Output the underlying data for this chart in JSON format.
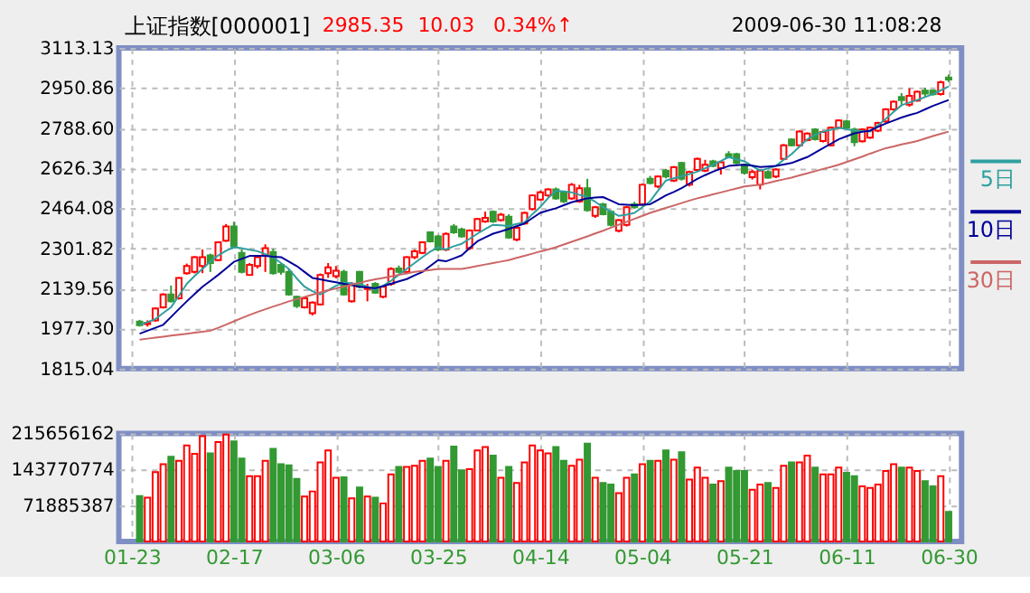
{
  "chart_data": [
    {
      "type": "candlestick",
      "title": "上证指数[000001]",
      "annotations": [
        "2985.35",
        "10.03",
        "0.34%↑",
        "2009-06-30 11:08:28"
      ],
      "categories": [
        null,
        null,
        null,
        null,
        null,
        null,
        null,
        null,
        null,
        null,
        null,
        null,
        null,
        null,
        null,
        null,
        null,
        null,
        null,
        null,
        null,
        null,
        null,
        null,
        null,
        null,
        null,
        null,
        null,
        null,
        null,
        null,
        null,
        null,
        null,
        null,
        null,
        null,
        null,
        null,
        null,
        null,
        null,
        null,
        null,
        null,
        null,
        null,
        null,
        null,
        null,
        null,
        null,
        null,
        null,
        null,
        null,
        null,
        null,
        null,
        null,
        null,
        null,
        null,
        null,
        null,
        null,
        null,
        null,
        null,
        null,
        null,
        null,
        null,
        null,
        null,
        null,
        null,
        null,
        null,
        null,
        null,
        null,
        null,
        null,
        null,
        null,
        null,
        null,
        null,
        null,
        null,
        null,
        null,
        null,
        null,
        null,
        null,
        null,
        null,
        null,
        null,
        null,
        null,
        null
      ],
      "ohlc": [
        null,
        [
          2005,
          2012,
          1985,
          1990
        ],
        [
          1995,
          2010,
          1985,
          2000
        ],
        [
          2010,
          2063,
          2005,
          2058
        ],
        [
          2063,
          2120,
          2058,
          2115
        ],
        [
          2115,
          2151,
          2082,
          2087
        ],
        [
          2099,
          2185,
          2094,
          2182
        ],
        [
          2201,
          2240,
          2195,
          2230
        ],
        [
          2206,
          2270,
          2200,
          2266
        ],
        [
          2230,
          2297,
          2201,
          2266
        ],
        [
          2273,
          2280,
          2206,
          2242
        ],
        [
          2254,
          2330,
          2250,
          2326
        ],
        [
          2333,
          2400,
          2328,
          2390
        ],
        [
          2390,
          2409,
          2302,
          2309
        ],
        [
          2283,
          2297,
          2200,
          2206
        ],
        [
          2194,
          2242,
          2190,
          2235
        ],
        [
          2230,
          2275,
          2220,
          2266
        ],
        [
          2273,
          2318,
          2206,
          2302
        ],
        [
          2287,
          2300,
          2195,
          2201
        ],
        [
          2235,
          2242,
          2195,
          2206
        ],
        [
          2206,
          2220,
          2110,
          2115
        ],
        [
          2106,
          2110,
          2060,
          2068
        ],
        [
          2063,
          2106,
          2058,
          2099
        ],
        [
          2039,
          2087,
          2030,
          2082
        ],
        [
          2075,
          2200,
          2070,
          2194
        ],
        [
          2201,
          2242,
          2182,
          2225
        ],
        [
          2189,
          2230,
          2180,
          2211
        ],
        [
          2206,
          2215,
          2110,
          2115
        ],
        [
          2087,
          2165,
          2082,
          2158
        ],
        [
          2206,
          2210,
          2140,
          2146
        ],
        [
          2137,
          2158,
          2087,
          2142
        ],
        [
          2158,
          2165,
          2118,
          2122
        ],
        [
          2106,
          2150,
          2100,
          2146
        ],
        [
          2158,
          2225,
          2150,
          2218
        ],
        [
          2220,
          2232,
          2200,
          2206
        ],
        [
          2206,
          2270,
          2200,
          2266
        ],
        [
          2266,
          2297,
          2258,
          2290
        ],
        [
          2283,
          2330,
          2278,
          2326
        ],
        [
          2366,
          2370,
          2325,
          2330
        ],
        [
          2350,
          2356,
          2290,
          2297
        ],
        [
          2297,
          2366,
          2290,
          2360
        ],
        [
          2390,
          2400,
          2360,
          2366
        ],
        [
          2378,
          2385,
          2345,
          2350
        ],
        [
          2302,
          2378,
          2295,
          2374
        ],
        [
          2374,
          2425,
          2370,
          2420
        ],
        [
          2410,
          2450,
          2405,
          2425
        ],
        [
          2450,
          2455,
          2405,
          2410
        ],
        [
          2416,
          2445,
          2410,
          2438
        ],
        [
          2430,
          2440,
          2340,
          2345
        ],
        [
          2337,
          2390,
          2330,
          2385
        ],
        [
          2402,
          2450,
          2398,
          2445
        ],
        [
          2461,
          2520,
          2455,
          2516
        ],
        [
          2499,
          2535,
          2495,
          2528
        ],
        [
          2516,
          2545,
          2510,
          2540
        ],
        [
          2540,
          2548,
          2498,
          2504
        ],
        [
          2528,
          2535,
          2485,
          2492
        ],
        [
          2504,
          2566,
          2498,
          2559
        ],
        [
          2492,
          2559,
          2486,
          2545
        ],
        [
          2545,
          2583,
          2450,
          2456
        ],
        [
          2433,
          2473,
          2425,
          2468
        ],
        [
          2480,
          2486,
          2435,
          2440
        ],
        [
          2450,
          2456,
          2390,
          2397
        ],
        [
          2373,
          2420,
          2366,
          2416
        ],
        [
          2397,
          2473,
          2390,
          2468
        ],
        [
          2480,
          2490,
          2462,
          2468
        ],
        [
          2480,
          2564,
          2473,
          2559
        ],
        [
          2583,
          2595,
          2560,
          2566
        ],
        [
          2552,
          2597,
          2545,
          2592
        ],
        [
          2616,
          2623,
          2585,
          2592
        ],
        [
          2576,
          2635,
          2570,
          2630
        ],
        [
          2647,
          2652,
          2576,
          2583
        ],
        [
          2559,
          2616,
          2552,
          2611
        ],
        [
          2619,
          2669,
          2612,
          2664
        ],
        [
          2616,
          2660,
          2610,
          2640
        ],
        [
          2654,
          2660,
          2630,
          2635
        ],
        [
          2626,
          2654,
          2600,
          2650
        ],
        [
          2683,
          2695,
          2666,
          2671
        ],
        [
          2683,
          2688,
          2642,
          2647
        ],
        [
          2640,
          2645,
          2600,
          2607
        ],
        [
          2590,
          2620,
          2580,
          2611
        ],
        [
          2559,
          2620,
          2540,
          2616
        ],
        [
          2611,
          2618,
          2583,
          2588
        ],
        [
          2592,
          2626,
          2586,
          2621
        ],
        [
          2664,
          2724,
          2659,
          2719
        ],
        [
          2742,
          2747,
          2714,
          2719
        ],
        [
          2719,
          2779,
          2714,
          2774
        ],
        [
          2740,
          2771,
          2735,
          2766
        ],
        [
          2783,
          2788,
          2738,
          2743
        ],
        [
          2736,
          2778,
          2730,
          2773
        ],
        [
          2719,
          2795,
          2714,
          2790
        ],
        [
          2790,
          2824,
          2785,
          2819
        ],
        [
          2816,
          2822,
          2785,
          2790
        ],
        [
          2783,
          2790,
          2715,
          2731
        ],
        [
          2735,
          2788,
          2730,
          2783
        ],
        [
          2750,
          2795,
          2745,
          2790
        ],
        [
          2778,
          2814,
          2772,
          2809
        ],
        [
          2816,
          2869,
          2810,
          2864
        ],
        [
          2864,
          2900,
          2858,
          2895
        ],
        [
          2914,
          2930,
          2880,
          2902
        ],
        [
          2883,
          2950,
          2875,
          2919
        ],
        [
          2900,
          2940,
          2895,
          2935
        ],
        [
          2940,
          2952,
          2915,
          2928
        ],
        [
          2940,
          2945,
          2920,
          2925
        ],
        [
          2926,
          2980,
          2920,
          2974
        ],
        [
          2993,
          3005,
          2975,
          2985
        ]
      ],
      "colors": [
        null,
        "#339933",
        "#ff0000",
        "#ff0000",
        "#ff0000",
        "#339933",
        "#ff0000",
        "#ff0000",
        "#ff0000",
        "#ff0000",
        "#339933",
        "#ff0000",
        "#ff0000",
        "#339933",
        "#339933",
        "#ff0000",
        "#ff0000",
        "#ff0000",
        "#339933",
        "#339933",
        "#339933",
        "#339933",
        "#ff0000",
        "#ff0000",
        "#ff0000",
        "#ff0000",
        "#ff0000",
        "#339933",
        "#ff0000",
        "#339933",
        "#ff0000",
        "#339933",
        "#ff0000",
        "#ff0000",
        "#339933",
        "#ff0000",
        "#ff0000",
        "#ff0000",
        "#339933",
        "#339933",
        "#ff0000",
        "#339933",
        "#339933",
        "#ff0000",
        "#ff0000",
        "#ff0000",
        "#339933",
        "#ff0000",
        "#339933",
        "#ff0000",
        "#ff0000",
        "#ff0000",
        "#ff0000",
        "#ff0000",
        "#339933",
        "#339933",
        "#ff0000",
        "#ff0000",
        "#339933",
        "#ff0000",
        "#339933",
        "#339933",
        "#ff0000",
        "#ff0000",
        "#339933",
        "#ff0000",
        "#339933",
        "#ff0000",
        "#339933",
        "#ff0000",
        "#339933",
        "#ff0000",
        "#ff0000",
        "#ff0000",
        "#339933",
        "#ff0000",
        "#339933",
        "#339933",
        "#339933",
        "#ff0000",
        "#ff0000",
        "#339933",
        "#ff0000",
        "#ff0000",
        "#339933",
        "#ff0000",
        "#ff0000",
        "#339933",
        "#ff0000",
        "#ff0000",
        "#ff0000",
        "#339933",
        "#339933",
        "#ff0000",
        "#ff0000",
        "#ff0000",
        "#ff0000",
        "#ff0000",
        "#339933",
        "#ff0000",
        "#ff0000",
        "#339933",
        "#339933",
        "#ff0000",
        "#339933"
      ],
      "series": [
        {
          "name": "5日",
          "type": "line",
          "color": "#2f9f9f",
          "values": [
            null,
            1992,
            2003,
            2015,
            2040,
            2063,
            2110,
            2158,
            2190,
            2218,
            2248,
            2273,
            2292,
            2306,
            2302,
            2296,
            2290,
            2278,
            2266,
            2242,
            2218,
            2180,
            2146,
            2128,
            2115,
            2132,
            2150,
            2163,
            2160,
            2158,
            2146,
            2135,
            2150,
            2170,
            2195,
            2218,
            2242,
            2266,
            2288,
            2306,
            2297,
            2310,
            2320,
            2340,
            2361,
            2380,
            2397,
            2395,
            2392,
            2400,
            2407,
            2440,
            2469,
            2505,
            2535,
            2532,
            2528,
            2518,
            2509,
            2490,
            2469,
            2450,
            2433,
            2438,
            2445,
            2468,
            2492,
            2535,
            2576,
            2585,
            2593,
            2602,
            2612,
            2626,
            2640,
            2655,
            2671,
            2662,
            2654,
            2635,
            2616,
            2625,
            2635,
            2660,
            2683,
            2713,
            2743,
            2760,
            2774,
            2782,
            2790,
            2784,
            2778,
            2776,
            2774,
            2800,
            2826,
            2854,
            2881,
            2892,
            2902,
            2914,
            2926,
            2941,
            2957
          ]
        },
        {
          "name": "10日",
          "type": "line",
          "color": "#000099",
          "values": [
            null,
            1956,
            1968,
            1980,
            1992,
            2024,
            2056,
            2087,
            2117,
            2146,
            2170,
            2194,
            2220,
            2247,
            2259,
            2271,
            2271,
            2271,
            2268,
            2266,
            2248,
            2230,
            2206,
            2182,
            2176,
            2170,
            2164,
            2158,
            2152,
            2146,
            2143,
            2140,
            2149,
            2158,
            2168,
            2177,
            2192,
            2206,
            2230,
            2254,
            2249,
            2261,
            2273,
            2302,
            2330,
            2346,
            2361,
            2370,
            2380,
            2391,
            2402,
            2424,
            2445,
            2455,
            2464,
            2476,
            2488,
            2496,
            2504,
            2507,
            2509,
            2495,
            2480,
            2478,
            2476,
            2478,
            2480,
            2498,
            2516,
            2530,
            2545,
            2564,
            2583,
            2598,
            2612,
            2624,
            2635,
            2638,
            2640,
            2636,
            2631,
            2633,
            2635,
            2641,
            2647,
            2659,
            2671,
            2689,
            2707,
            2725,
            2743,
            2755,
            2767,
            2773,
            2778,
            2793,
            2807,
            2819,
            2831,
            2841,
            2850,
            2864,
            2878,
            2890,
            2902
          ]
        },
        {
          "name": "30日",
          "type": "line",
          "color": "#cc6666",
          "values": [
            null,
            1932,
            1936,
            1940,
            1944,
            1948,
            1952,
            1956,
            1960,
            1964,
            1968,
            1980,
            1993,
            2006,
            2019,
            2032,
            2044,
            2055,
            2066,
            2076,
            2087,
            2096,
            2105,
            2114,
            2123,
            2131,
            2139,
            2147,
            2155,
            2162,
            2170,
            2176,
            2182,
            2188,
            2194,
            2200,
            2206,
            2210,
            2214,
            2218,
            2218,
            2218,
            2218,
            2224,
            2230,
            2236,
            2242,
            2248,
            2254,
            2263,
            2271,
            2280,
            2289,
            2297,
            2306,
            2317,
            2328,
            2339,
            2350,
            2362,
            2373,
            2385,
            2397,
            2409,
            2421,
            2433,
            2445,
            2455,
            2465,
            2475,
            2485,
            2495,
            2504,
            2512,
            2520,
            2528,
            2536,
            2544,
            2552,
            2556,
            2559,
            2566,
            2574,
            2581,
            2588,
            2597,
            2605,
            2614,
            2623,
            2631,
            2640,
            2651,
            2662,
            2673,
            2685,
            2696,
            2707,
            2714,
            2722,
            2729,
            2736,
            2746,
            2756,
            2765,
            2774
          ]
        }
      ],
      "ylim": [
        1815.04,
        3113.13
      ],
      "yticks": [
        1815.04,
        {
          "value": 1977.3,
          "label": "1977.30"
        },
        2139.56,
        2301.82,
        2464.08,
        2626.34,
        {
          "value": 2788.6,
          "label": "2788.60"
        },
        2950.86,
        3113.13
      ],
      "grid": true,
      "legend": "right",
      "tick_labels": "y"
    },
    {
      "type": "bar",
      "categories": [
        "01-23",
        null,
        null,
        null,
        null,
        null,
        null,
        null,
        null,
        null,
        null,
        null,
        null,
        "02-17",
        null,
        null,
        null,
        null,
        null,
        null,
        null,
        null,
        null,
        null,
        null,
        null,
        "03-06",
        null,
        null,
        null,
        null,
        null,
        null,
        null,
        null,
        null,
        null,
        null,
        null,
        "03-25",
        null,
        null,
        null,
        null,
        null,
        null,
        null,
        null,
        null,
        null,
        null,
        null,
        "04-14",
        null,
        null,
        null,
        null,
        null,
        null,
        null,
        null,
        null,
        null,
        null,
        null,
        "05-04",
        null,
        null,
        null,
        null,
        null,
        null,
        null,
        null,
        null,
        null,
        null,
        null,
        "05-21",
        null,
        null,
        null,
        null,
        null,
        null,
        null,
        null,
        null,
        null,
        null,
        null,
        "06-11",
        null,
        null,
        null,
        null,
        null,
        null,
        null,
        null,
        null,
        null,
        null,
        null,
        "06-30"
      ],
      "values": [
        null,
        90800000,
        87400000,
        138500000,
        154400000,
        169100000,
        161200000,
        191800000,
        174800000,
        210000000,
        175900000,
        198600000,
        213400000,
        199800000,
        165700000,
        130500000,
        130500000,
        161200000,
        185000000,
        154400000,
        152100000,
        124900000,
        89700000,
        99900000,
        157800000,
        181600000,
        127100000,
        128300000,
        86300000,
        107800000,
        89700000,
        87400000,
        76000000,
        133900000,
        148700000,
        148700000,
        151000000,
        161200000,
        165700000,
        148700000,
        161200000,
        189500000,
        141900000,
        144100000,
        181600000,
        188400000,
        171400000,
        127100000,
        148700000,
        116900000,
        157800000,
        191800000,
        181600000,
        175900000,
        188400000,
        161200000,
        151000000,
        163400000,
        195200000,
        127100000,
        116900000,
        113500000,
        96500000,
        127100000,
        133900000,
        154400000,
        161200000,
        161200000,
        181600000,
        163400000,
        178200000,
        123700000,
        147600000,
        127100000,
        113500000,
        120300000,
        147600000,
        140700000,
        140700000,
        103300000,
        113500000,
        116900000,
        106700000,
        151000000,
        157800000,
        157800000,
        171400000,
        147600000,
        133900000,
        133900000,
        147600000,
        137300000,
        130500000,
        110100000,
        106700000,
        113500000,
        140700000,
        154400000,
        147600000,
        147600000,
        140700000,
        120300000,
        110100000,
        130500000,
        59000000
      ],
      "colors": [
        null,
        "#339933",
        "#ff0000",
        "#ff0000",
        "#ff0000",
        "#339933",
        "#ff0000",
        "#ff0000",
        "#ff0000",
        "#ff0000",
        "#339933",
        "#ff0000",
        "#ff0000",
        "#339933",
        "#339933",
        "#ff0000",
        "#ff0000",
        "#ff0000",
        "#339933",
        "#339933",
        "#339933",
        "#339933",
        "#ff0000",
        "#ff0000",
        "#ff0000",
        "#ff0000",
        "#ff0000",
        "#339933",
        "#ff0000",
        "#339933",
        "#ff0000",
        "#339933",
        "#ff0000",
        "#ff0000",
        "#339933",
        "#ff0000",
        "#ff0000",
        "#ff0000",
        "#339933",
        "#339933",
        "#ff0000",
        "#339933",
        "#339933",
        "#ff0000",
        "#ff0000",
        "#ff0000",
        "#339933",
        "#ff0000",
        "#339933",
        "#ff0000",
        "#ff0000",
        "#ff0000",
        "#ff0000",
        "#ff0000",
        "#339933",
        "#339933",
        "#ff0000",
        "#ff0000",
        "#339933",
        "#ff0000",
        "#339933",
        "#339933",
        "#ff0000",
        "#ff0000",
        "#339933",
        "#ff0000",
        "#339933",
        "#ff0000",
        "#339933",
        "#ff0000",
        "#339933",
        "#ff0000",
        "#ff0000",
        "#ff0000",
        "#339933",
        "#ff0000",
        "#339933",
        "#339933",
        "#339933",
        "#ff0000",
        "#ff0000",
        "#339933",
        "#ff0000",
        "#ff0000",
        "#339933",
        "#ff0000",
        "#ff0000",
        "#339933",
        "#ff0000",
        "#ff0000",
        "#ff0000",
        "#339933",
        "#339933",
        "#ff0000",
        "#ff0000",
        "#ff0000",
        "#ff0000",
        "#ff0000",
        "#339933",
        "#ff0000",
        "#ff0000",
        "#339933",
        "#339933",
        "#ff0000",
        "#339933"
      ],
      "ylim": [
        0,
        215656162
      ],
      "yticks": [
        71885387,
        143770774,
        215656162
      ],
      "grid": true
    }
  ]
}
